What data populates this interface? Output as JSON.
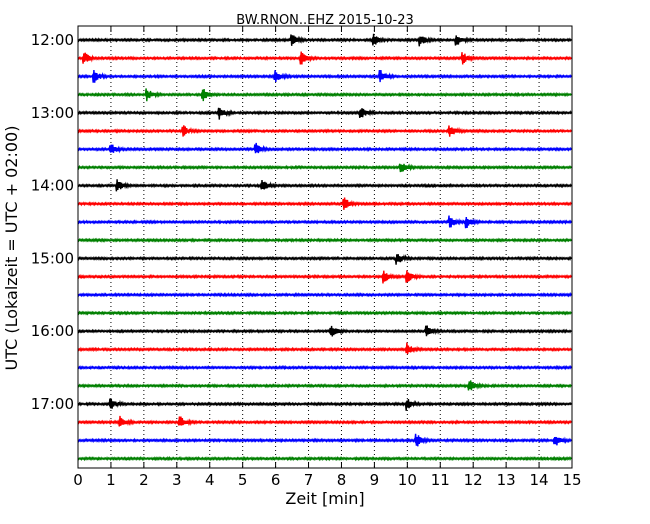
{
  "chart_data": {
    "type": "line",
    "title": "BW.RNON..EHZ 2015-10-23",
    "xlabel": "Zeit  [min]",
    "ylabel": "UTC (Lokalzeit = UTC + 02:00)",
    "xlim": [
      0,
      15
    ],
    "x_ticks": [
      0,
      1,
      2,
      3,
      4,
      5,
      6,
      7,
      8,
      9,
      10,
      11,
      12,
      13,
      14,
      15
    ],
    "x_tick_labels": [
      "0",
      "1",
      "2",
      "3",
      "4",
      "5",
      "6",
      "7",
      "8",
      "9",
      "10",
      "11",
      "12",
      "13",
      "14",
      "15"
    ],
    "y_tick_labels": [
      "12:00",
      "13:00",
      "14:00",
      "15:00",
      "16:00",
      "17:00"
    ],
    "grid": "vertical dotted lines at each minute",
    "trace_interval_minutes": 15,
    "trace_color_cycle": [
      "#000000",
      "#ff0000",
      "#0000ff",
      "#008000"
    ],
    "series": [
      {
        "start": "12:00",
        "color": "#000000",
        "events_min": [
          6.5,
          9.0,
          10.4,
          11.5
        ]
      },
      {
        "start": "12:15",
        "color": "#ff0000",
        "events_min": [
          0.2,
          6.8,
          11.7
        ]
      },
      {
        "start": "12:30",
        "color": "#0000ff",
        "events_min": [
          0.5,
          6.0,
          9.2
        ]
      },
      {
        "start": "12:45",
        "color": "#008000",
        "events_min": [
          2.1,
          3.8
        ]
      },
      {
        "start": "13:00",
        "color": "#000000",
        "events_min": [
          4.3,
          8.6
        ]
      },
      {
        "start": "13:15",
        "color": "#ff0000",
        "events_min": [
          3.2,
          11.3
        ]
      },
      {
        "start": "13:30",
        "color": "#0000ff",
        "events_min": [
          1.0,
          5.4
        ]
      },
      {
        "start": "13:45",
        "color": "#008000",
        "events_min": [
          9.8
        ]
      },
      {
        "start": "14:00",
        "color": "#000000",
        "events_min": [
          1.2,
          5.6
        ]
      },
      {
        "start": "14:15",
        "color": "#ff0000",
        "events_min": [
          8.1
        ]
      },
      {
        "start": "14:30",
        "color": "#0000ff",
        "events_min": [
          11.3,
          11.8
        ]
      },
      {
        "start": "14:45",
        "color": "#008000",
        "events_min": []
      },
      {
        "start": "15:00",
        "color": "#000000",
        "events_min": [
          9.7
        ]
      },
      {
        "start": "15:15",
        "color": "#ff0000",
        "events_min": [
          9.3,
          10.0
        ]
      },
      {
        "start": "15:30",
        "color": "#0000ff",
        "events_min": []
      },
      {
        "start": "15:45",
        "color": "#008000",
        "events_min": []
      },
      {
        "start": "16:00",
        "color": "#000000",
        "events_min": [
          7.7,
          10.6
        ]
      },
      {
        "start": "16:15",
        "color": "#ff0000",
        "events_min": [
          10.0
        ]
      },
      {
        "start": "16:30",
        "color": "#0000ff",
        "events_min": []
      },
      {
        "start": "16:45",
        "color": "#008000",
        "events_min": [
          11.9
        ]
      },
      {
        "start": "17:00",
        "color": "#000000",
        "events_min": [
          1.0,
          10.0
        ]
      },
      {
        "start": "17:15",
        "color": "#ff0000",
        "events_min": [
          1.3,
          3.1
        ]
      },
      {
        "start": "17:30",
        "color": "#0000ff",
        "events_min": [
          10.3,
          14.5
        ]
      },
      {
        "start": "17:45",
        "color": "#008000",
        "events_min": []
      }
    ]
  }
}
